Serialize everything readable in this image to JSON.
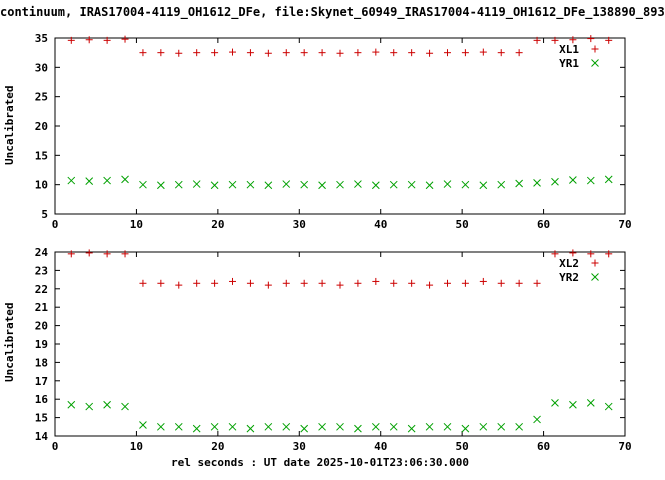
{
  "title": "continuum, IRAS17004-4119_OH1612_DFe, file:Skynet_60949_IRAS17004-4119_OH1612_DFe_138890_893",
  "xlabel": "rel seconds : UT date 2025-10-01T23:06:30.000",
  "colors": {
    "red": "#cc0000",
    "green": "#00a000",
    "axis": "#000000",
    "background": "#ffffff"
  },
  "chart_data": [
    {
      "type": "scatter",
      "title": "",
      "ylabel": "Uncalibrated",
      "xlabel": "",
      "xlim": [
        0,
        70
      ],
      "ylim": [
        5,
        35
      ],
      "xticks": [
        0,
        10,
        20,
        30,
        40,
        50,
        60,
        70
      ],
      "yticks": [
        5,
        10,
        15,
        20,
        25,
        30,
        35
      ],
      "grid": false,
      "legend_position": "top-right",
      "x": [
        2,
        4.2,
        6.4,
        8.6,
        10.8,
        13,
        15.2,
        17.4,
        19.6,
        21.8,
        24,
        26.2,
        28.4,
        30.6,
        32.8,
        35,
        37.2,
        39.4,
        41.6,
        43.8,
        46,
        48.2,
        50.4,
        52.6,
        54.8,
        57,
        59.2,
        61.4,
        63.6,
        65.8,
        68
      ],
      "series": [
        {
          "name": "XL1",
          "marker": "plus",
          "color": "#cc0000",
          "values": [
            34.6,
            34.7,
            34.6,
            34.8,
            32.5,
            32.5,
            32.4,
            32.5,
            32.5,
            32.6,
            32.5,
            32.4,
            32.5,
            32.5,
            32.5,
            32.4,
            32.5,
            32.6,
            32.5,
            32.5,
            32.4,
            32.5,
            32.5,
            32.6,
            32.5,
            32.5,
            34.6,
            34.6,
            34.7,
            34.9,
            34.6
          ]
        },
        {
          "name": "YR1",
          "marker": "cross",
          "color": "#00a000",
          "values": [
            10.7,
            10.6,
            10.7,
            10.9,
            10.0,
            9.9,
            10.0,
            10.1,
            9.9,
            10.0,
            10.0,
            9.9,
            10.1,
            10.0,
            9.9,
            10.0,
            10.1,
            9.9,
            10.0,
            10.0,
            9.9,
            10.1,
            10.0,
            9.9,
            10.0,
            10.2,
            10.3,
            10.5,
            10.8,
            10.7,
            10.9
          ]
        }
      ]
    },
    {
      "type": "scatter",
      "title": "",
      "ylabel": "Uncalibrated",
      "xlabel": "rel seconds : UT date 2025-10-01T23:06:30.000",
      "xlim": [
        0,
        70
      ],
      "ylim": [
        14,
        24
      ],
      "xticks": [
        0,
        10,
        20,
        30,
        40,
        50,
        60,
        70
      ],
      "yticks": [
        14,
        15,
        16,
        17,
        18,
        19,
        20,
        21,
        22,
        23,
        24
      ],
      "grid": false,
      "legend_position": "top-right",
      "x": [
        2,
        4.2,
        6.4,
        8.6,
        10.8,
        13,
        15.2,
        17.4,
        19.6,
        21.8,
        24,
        26.2,
        28.4,
        30.6,
        32.8,
        35,
        37.2,
        39.4,
        41.6,
        43.8,
        46,
        48.2,
        50.4,
        52.6,
        54.8,
        57,
        59.2,
        61.4,
        63.6,
        65.8,
        68
      ],
      "series": [
        {
          "name": "XL2",
          "marker": "plus",
          "color": "#cc0000",
          "values": [
            23.9,
            23.95,
            23.9,
            23.9,
            22.3,
            22.3,
            22.2,
            22.3,
            22.3,
            22.4,
            22.3,
            22.2,
            22.3,
            22.3,
            22.3,
            22.2,
            22.3,
            22.4,
            22.3,
            22.3,
            22.2,
            22.3,
            22.3,
            22.4,
            22.3,
            22.3,
            22.3,
            23.9,
            23.95,
            23.9,
            23.9
          ]
        },
        {
          "name": "YR2",
          "marker": "cross",
          "color": "#00a000",
          "values": [
            15.7,
            15.6,
            15.7,
            15.6,
            14.6,
            14.5,
            14.5,
            14.4,
            14.5,
            14.5,
            14.4,
            14.5,
            14.5,
            14.4,
            14.5,
            14.5,
            14.4,
            14.5,
            14.5,
            14.4,
            14.5,
            14.5,
            14.4,
            14.5,
            14.5,
            14.5,
            14.9,
            15.8,
            15.7,
            15.8,
            15.6
          ]
        }
      ]
    }
  ]
}
